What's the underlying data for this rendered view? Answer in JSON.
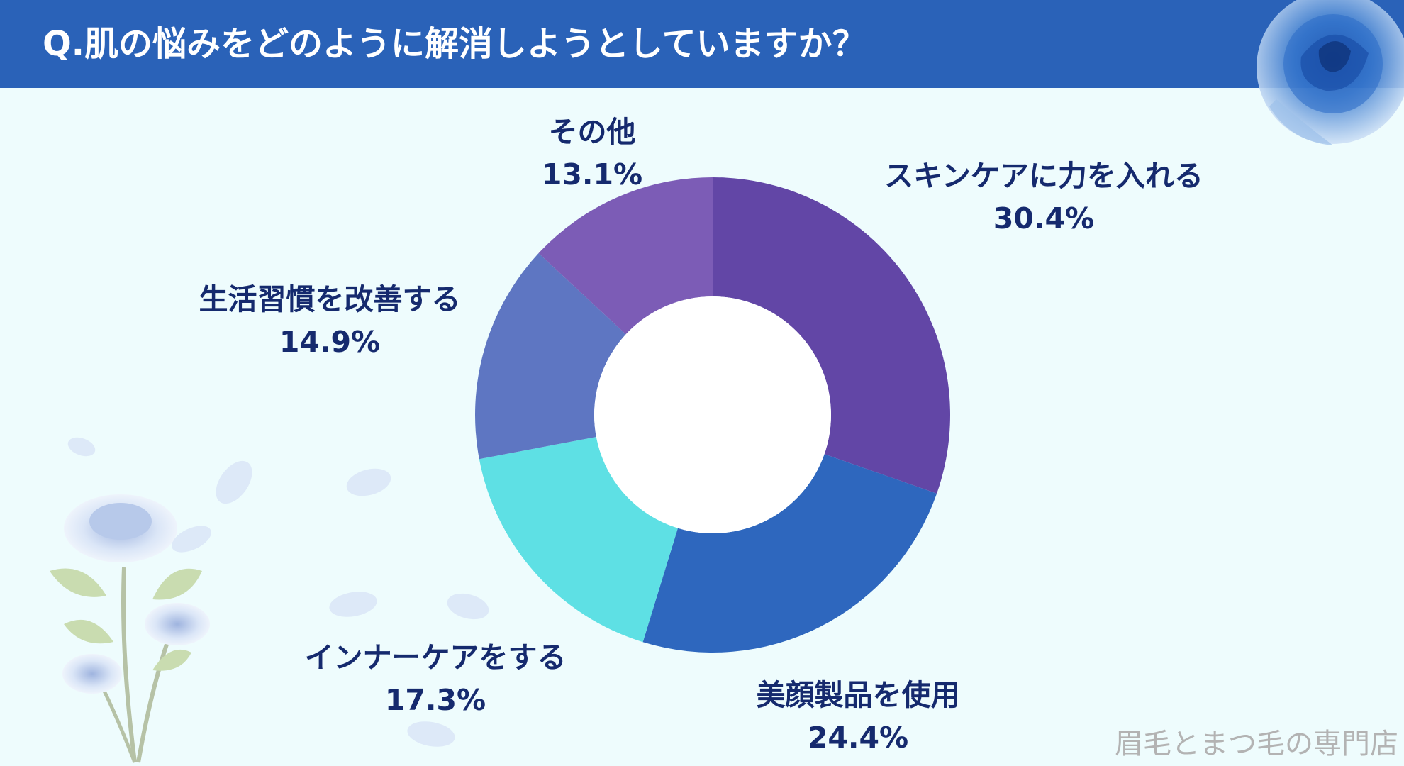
{
  "header": {
    "title": "Q.肌の悩みをどのように解消しようとしていますか？"
  },
  "watermark": "眉毛とまつ毛の専門店",
  "chart_data": {
    "type": "pie",
    "title": "Q.肌の悩みをどのように解消しようとしていますか？",
    "categories": [
      "スキンケアに力を入れる",
      "美顔製品を使用",
      "インナーケアをする",
      "生活習慣を改善する",
      "その他"
    ],
    "values": [
      30.4,
      24.4,
      17.3,
      14.9,
      13.1
    ],
    "percent_labels": [
      "30.4%",
      "24.4%",
      "17.3%",
      "14.9%",
      "13.1%"
    ],
    "colors": [
      "#6246a6",
      "#2e67be",
      "#5ee0e4",
      "#5e76c2",
      "#7c5cb6"
    ],
    "donut": true
  },
  "decoration": {
    "rose_color": "#3f7fd0",
    "petal_color": "#dde9f8"
  }
}
